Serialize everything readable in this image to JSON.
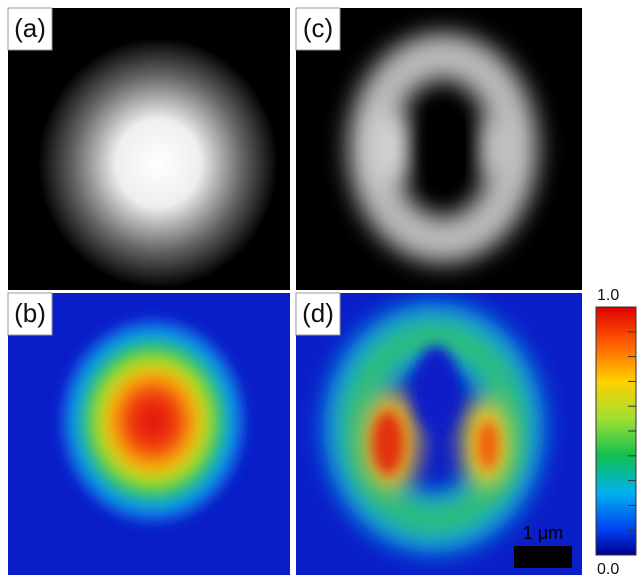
{
  "panels": [
    {
      "label": "(a)"
    },
    {
      "label": "(b)"
    },
    {
      "label": "(c)"
    },
    {
      "label": "(d)"
    }
  ],
  "colorbar": {
    "max_label": "1.0",
    "min_label": "0.0"
  },
  "scale_bar": {
    "label": "1 μm"
  }
}
